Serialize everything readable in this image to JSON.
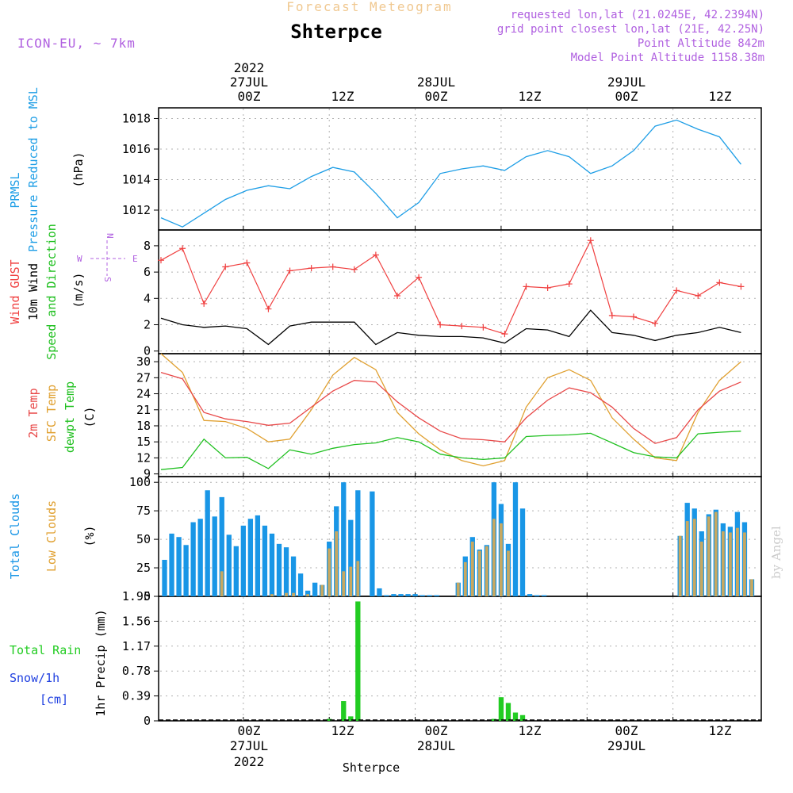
{
  "header": {
    "subtitle": "Forecast Meteogram",
    "station": "Shterpce",
    "model": "ICON-EU, ~ 7km",
    "info_lines": [
      "requested lon,lat (21.0245E, 42.2394N)",
      "grid point closest lon,lat (21E, 42.25N)",
      "Point Altitude 842m",
      "Model Point Altitude 1158.38m"
    ]
  },
  "time_axis": {
    "ticks": [
      {
        "label": "00Z",
        "date": "27JUL",
        "year": "2022"
      },
      {
        "label": "12Z",
        "date": "",
        "year": ""
      },
      {
        "label": "00Z",
        "date": "28JUL",
        "year": ""
      },
      {
        "label": "12Z",
        "date": "",
        "year": ""
      },
      {
        "label": "00Z",
        "date": "29JUL",
        "year": ""
      },
      {
        "label": "12Z",
        "date": "",
        "year": ""
      }
    ],
    "bottom_label": "Shterpce"
  },
  "watermark": "by Angel",
  "panels": {
    "pressure": {
      "ylabel1": "PRMSL",
      "ylabel2": "Pressure Reduced to MSL",
      "unit": "(hPa)",
      "ticks": [
        "1012",
        "1014",
        "1016",
        "1018"
      ]
    },
    "wind": {
      "ylabel1": "Wind GUST",
      "ylabel2": "10m Wind",
      "ylabel3": "Speed and Direction",
      "unit": "(m/s)",
      "ticks": [
        "0",
        "2",
        "4",
        "6",
        "8"
      ],
      "compass": {
        "n": "N",
        "s": "S",
        "w": "W",
        "e": "E"
      }
    },
    "temp": {
      "ylabel1": "2m Temp",
      "ylabel2": "SFC Temp",
      "ylabel3": "dewpt Temp",
      "unit": "(C)",
      "ticks": [
        "9",
        "12",
        "15",
        "18",
        "21",
        "24",
        "27",
        "30"
      ]
    },
    "clouds": {
      "ylabel1": "Total Clouds",
      "ylabel2": "Low Clouds",
      "unit": "(%)",
      "ticks": [
        "0",
        "25",
        "50",
        "75",
        "100"
      ]
    },
    "precip": {
      "ylabel1": "Total Rain",
      "ylabel2": "Snow/1h",
      "ylabel3": "[cm]",
      "ylabel4": "1hr Precip (mm)",
      "ticks": [
        "0",
        "0.39",
        "0.78",
        "1.17",
        "1.56",
        "1.95"
      ]
    }
  },
  "colors": {
    "pressure": "#1e9ee6",
    "gust": "#f04040",
    "wind": "#000000",
    "temp2m": "#e84848",
    "sfc": "#e0a030",
    "dewpt": "#20c020",
    "total_cloud": "#1996e6",
    "low_cloud": "#c8a860",
    "rain": "#22cc22",
    "snow": "#2040e0",
    "info": "#b060e0",
    "subtitle": "#f0c890"
  },
  "chart_data": [
    {
      "type": "line",
      "title": "PRMSL Pressure Reduced to MSL",
      "ylabel": "(hPa)",
      "ylim": [
        1010.7,
        1018.7
      ],
      "x_hours_from_start": [
        0,
        3,
        6,
        9,
        12,
        15,
        18,
        21,
        24,
        27,
        30,
        33,
        36,
        39,
        42,
        45,
        48,
        51,
        54,
        57,
        60,
        63,
        66,
        69,
        72,
        75,
        78,
        81
      ],
      "series": [
        {
          "values": [
            1011.5,
            1010.9,
            1011.8,
            1012.7,
            1013.3,
            1013.6,
            1013.4,
            1014.2,
            1014.8,
            1014.5,
            1013.1,
            1011.5,
            1012.5,
            1014.4,
            1014.7,
            1014.9,
            1014.6,
            1015.5,
            1015.9,
            1015.5,
            1014.4,
            1014.9,
            1015.9,
            1017.5,
            1017.9,
            1017.3,
            1016.8,
            1015.0
          ]
        }
      ]
    },
    {
      "type": "line",
      "title": "Wind GUST / 10m Wind Speed and Direction",
      "ylabel": "(m/s)",
      "ylim": [
        -0.2,
        9.2
      ],
      "x_hours_from_start": [
        0,
        3,
        6,
        9,
        12,
        15,
        18,
        21,
        24,
        27,
        30,
        33,
        36,
        39,
        42,
        45,
        48,
        51,
        54,
        57,
        60,
        63,
        66,
        69,
        72,
        75,
        78,
        81
      ],
      "series": [
        {
          "name": "Wind GUST",
          "values": [
            6.9,
            7.8,
            3.6,
            6.4,
            6.7,
            3.2,
            6.1,
            6.3,
            6.4,
            6.2,
            7.3,
            4.2,
            5.6,
            2.0,
            1.9,
            1.8,
            1.3,
            4.9,
            4.8,
            5.1,
            8.4,
            2.7,
            2.6,
            2.1,
            4.6,
            4.2,
            5.2,
            4.9
          ]
        },
        {
          "name": "10m Wind",
          "values": [
            2.5,
            2.0,
            1.8,
            1.9,
            1.7,
            0.5,
            1.9,
            2.2,
            2.2,
            2.2,
            0.5,
            1.4,
            1.2,
            1.1,
            1.1,
            1.0,
            0.6,
            1.7,
            1.6,
            1.1,
            3.1,
            1.4,
            1.2,
            0.8,
            1.2,
            1.4,
            1.8,
            1.4
          ]
        }
      ]
    },
    {
      "type": "line",
      "title": "2m Temp / SFC Temp / dewpt Temp",
      "ylabel": "(C)",
      "ylim": [
        8.5,
        31.5
      ],
      "x_hours_from_start": [
        0,
        3,
        6,
        9,
        12,
        15,
        18,
        21,
        24,
        27,
        30,
        33,
        36,
        39,
        42,
        45,
        48,
        51,
        54,
        57,
        60,
        63,
        66,
        69,
        72,
        75,
        78,
        81
      ],
      "series": [
        {
          "name": "2m Temp",
          "values": [
            28.0,
            26.8,
            20.5,
            19.3,
            18.8,
            18.1,
            18.5,
            21.5,
            24.5,
            26.5,
            26.2,
            22.5,
            19.5,
            17.0,
            15.6,
            15.4,
            15.0,
            19.5,
            22.8,
            25.1,
            24.2,
            21.5,
            17.5,
            14.7,
            15.8,
            21.0,
            24.5,
            26.2
          ]
        },
        {
          "name": "SFC Temp",
          "values": [
            31.5,
            28.0,
            19.0,
            18.8,
            17.5,
            15.0,
            15.5,
            21.0,
            27.5,
            30.8,
            28.5,
            20.5,
            16.5,
            13.5,
            11.5,
            10.5,
            11.5,
            21.5,
            27.0,
            28.5,
            26.5,
            19.5,
            15.5,
            12.0,
            11.5,
            20.5,
            26.5,
            30.0
          ]
        },
        {
          "name": "dewpt Temp",
          "values": [
            9.8,
            10.2,
            15.5,
            12.0,
            12.1,
            10.0,
            13.5,
            12.7,
            13.8,
            14.5,
            14.8,
            15.8,
            15.0,
            12.7,
            12.0,
            11.7,
            12.0,
            16.0,
            16.2,
            16.3,
            16.6,
            14.8,
            13.0,
            12.2,
            12.0,
            16.5,
            16.8,
            17.0
          ]
        }
      ]
    },
    {
      "type": "bar",
      "title": "Total Clouds / Low Clouds",
      "ylabel": "(%)",
      "ylim": [
        0,
        105
      ],
      "x_hours_from_start": [
        0,
        1,
        2,
        3,
        4,
        5,
        6,
        7,
        8,
        9,
        10,
        11,
        12,
        13,
        14,
        15,
        16,
        17,
        18,
        19,
        20,
        21,
        22,
        23,
        24,
        25,
        26,
        27,
        28,
        29,
        30,
        31,
        32,
        33,
        34,
        35,
        36,
        37,
        38,
        39,
        40,
        41,
        42,
        43,
        44,
        45,
        46,
        47,
        48,
        49,
        50,
        51,
        52,
        53,
        54,
        55,
        56,
        57,
        58,
        59,
        60,
        61,
        62,
        63,
        64,
        65,
        66,
        67,
        68,
        69,
        70,
        71,
        72,
        73,
        74,
        75,
        76,
        77,
        78,
        79,
        80,
        81,
        82,
        83
      ],
      "series": [
        {
          "name": "Total Clouds",
          "values": [
            32,
            55,
            52,
            45,
            65,
            68,
            93,
            70,
            87,
            54,
            44,
            62,
            68,
            71,
            62,
            55,
            46,
            43,
            35,
            20,
            5,
            12,
            10,
            48,
            79,
            100,
            67,
            93,
            0,
            92,
            7,
            1,
            2,
            2,
            2,
            2,
            1,
            1,
            1,
            0,
            0,
            12,
            35,
            52,
            41,
            45,
            100,
            81,
            46,
            100,
            77,
            2,
            1,
            1,
            0,
            0,
            0,
            0,
            0,
            0,
            0,
            0,
            0,
            0,
            0,
            0,
            0,
            0,
            0,
            0,
            0,
            0,
            53,
            82,
            77,
            57,
            72,
            76,
            64,
            61,
            74,
            65,
            15,
            0
          ]
        },
        {
          "name": "Low Clouds",
          "values": [
            0,
            0,
            0,
            0,
            0,
            0,
            0,
            0,
            22,
            0,
            0,
            0,
            0,
            0,
            0,
            2,
            0,
            3,
            3,
            0,
            2,
            0,
            10,
            42,
            57,
            22,
            26,
            31,
            0,
            0,
            0,
            0,
            0,
            0,
            0,
            0,
            0,
            0,
            0,
            0,
            0,
            12,
            30,
            48,
            40,
            44,
            68,
            64,
            40,
            0,
            0,
            0,
            0,
            0,
            0,
            0,
            0,
            0,
            0,
            0,
            0,
            0,
            0,
            0,
            0,
            0,
            0,
            0,
            0,
            0,
            0,
            0,
            53,
            66,
            68,
            48,
            70,
            74,
            57,
            56,
            60,
            56,
            15,
            0
          ]
        }
      ]
    },
    {
      "type": "bar",
      "title": "Total Rain / Snow",
      "ylabel": "1hr Precip (mm)",
      "ylim": [
        0,
        1.95
      ],
      "x_hours_from_start": [
        0,
        1,
        2,
        3,
        4,
        5,
        6,
        7,
        8,
        9,
        10,
        11,
        12,
        13,
        14,
        15,
        16,
        17,
        18,
        19,
        20,
        21,
        22,
        23,
        24,
        25,
        26,
        27,
        28,
        29,
        30,
        31,
        32,
        33,
        34,
        35,
        36,
        37,
        38,
        39,
        40,
        41,
        42,
        43,
        44,
        45,
        46,
        47,
        48,
        49,
        50,
        51,
        52,
        53,
        54,
        55,
        56,
        57,
        58,
        59,
        60,
        61,
        62,
        63,
        64,
        65,
        66,
        67,
        68,
        69,
        70,
        71,
        72,
        73,
        74,
        75,
        76,
        77,
        78,
        79,
        80,
        81,
        82,
        83
      ],
      "series": [
        {
          "name": "Total Rain",
          "values": [
            0,
            0,
            0,
            0,
            0,
            0,
            0,
            0,
            0,
            0,
            0,
            0,
            0,
            0,
            0,
            0,
            0,
            0,
            0,
            0,
            0,
            0,
            0,
            0.03,
            0,
            0.31,
            0.07,
            1.87,
            0,
            0,
            0,
            0,
            0,
            0,
            0,
            0,
            0,
            0,
            0,
            0,
            0,
            0,
            0,
            0,
            0,
            0,
            0.03,
            0.37,
            0.28,
            0.13,
            0.09,
            0,
            0,
            0,
            0,
            0,
            0,
            0,
            0,
            0,
            0,
            0,
            0,
            0,
            0,
            0,
            0,
            0,
            0,
            0,
            0,
            0,
            0,
            0,
            0,
            0,
            0,
            0,
            0,
            0,
            0,
            0,
            0,
            0
          ]
        }
      ]
    }
  ]
}
